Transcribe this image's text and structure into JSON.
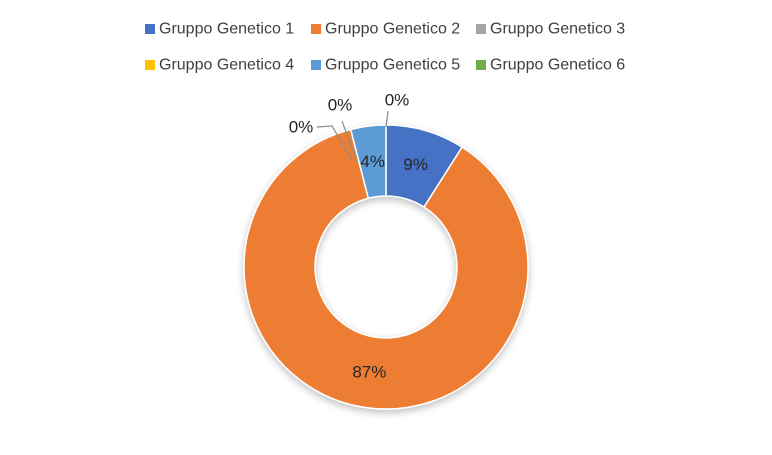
{
  "chart_data": {
    "type": "pie",
    "variant": "doughnut",
    "title": "",
    "legend_position": "top",
    "categories": [
      "Gruppo Genetico 1",
      "Gruppo Genetico 2",
      "Gruppo Genetico 3",
      "Gruppo Genetico 4",
      "Gruppo Genetico 5",
      "Gruppo Genetico 6"
    ],
    "values": [
      9,
      87,
      0,
      0,
      4,
      0
    ],
    "data_labels": [
      "9%",
      "87%",
      "0%",
      "0%",
      "4%",
      "0%"
    ],
    "colors": [
      "#4472C4",
      "#ED7D31",
      "#A5A5A5",
      "#FFC000",
      "#5B9BD5",
      "#70AD47"
    ]
  }
}
